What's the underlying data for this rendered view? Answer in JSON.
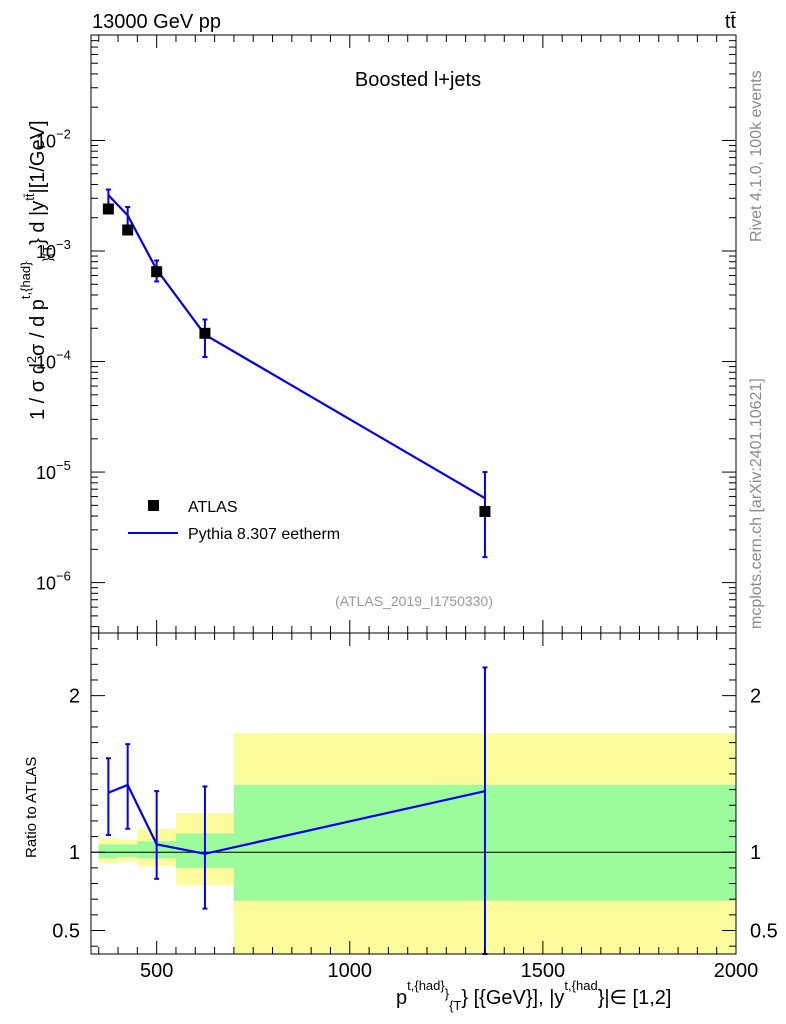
{
  "header": {
    "energy_label": "13000 GeV pp",
    "process_label": "tt̄"
  },
  "side_labels": {
    "rivet": "Rivet 4.1.0,  100k events",
    "mcplots": "mcplots.cern.ch [arXiv:2401.10621]"
  },
  "chart_data": [
    {
      "type": "scatter",
      "panel": "main",
      "title": "Boosted l+jets",
      "analysis_id": "(ATLAS_2019_I1750330)",
      "ylabel": "1 / σ d²σ / d p^{t,{had}}_{T} d |y^{tt̄}|[1/GeV]",
      "yscale": "log",
      "xlim": [
        330,
        2000
      ],
      "ylim": [
        3.5e-07,
        0.09
      ],
      "ytick_labels": [
        {
          "value": 1e-06,
          "mantissa": "10",
          "exp": "−6"
        },
        {
          "value": 1e-05,
          "mantissa": "10",
          "exp": "−5"
        },
        {
          "value": 0.0001,
          "mantissa": "10",
          "exp": "−4"
        },
        {
          "value": 0.001,
          "mantissa": "10",
          "exp": "−3"
        },
        {
          "value": 0.01,
          "mantissa": "10",
          "exp": "−2"
        }
      ],
      "legend": {
        "location": "lower-left",
        "entries": [
          {
            "label": "ATLAS",
            "marker": "square"
          },
          {
            "label": "Pythia 8.307 eetherm",
            "marker": "line"
          }
        ]
      },
      "series": [
        {
          "name": "ATLAS",
          "color": "#000000",
          "x": [
            375,
            425,
            500,
            625,
            1350
          ],
          "y": [
            0.0024,
            0.00155,
            0.00065,
            0.00018,
            4.4e-06
          ]
        },
        {
          "name": "Pythia 8.307 eetherm",
          "color": "#0000ee",
          "x": [
            375,
            425,
            500,
            625,
            1350
          ],
          "y": [
            0.0032,
            0.0021,
            0.00068,
            0.000175,
            5.8e-06
          ],
          "yerr_low": [
            0.0026,
            0.0017,
            0.00053,
            0.00011,
            1.7e-06
          ],
          "yerr_high": [
            0.0036,
            0.0025,
            0.00082,
            0.00024,
            1e-05
          ]
        }
      ]
    },
    {
      "type": "line",
      "panel": "ratio",
      "ylabel": "Ratio to ATLAS",
      "xlabel": "p^{t,{had}}_{T} [{GeV}], |y^{t,{had}}|∈ [1,2]",
      "xlim": [
        330,
        2000
      ],
      "ylim": [
        0.35,
        2.4
      ],
      "xtick_labels": [
        {
          "value": 500,
          "label": "500"
        },
        {
          "value": 1000,
          "label": "1000"
        },
        {
          "value": 1500,
          "label": "1500"
        },
        {
          "value": 2000,
          "label": "2000"
        }
      ],
      "ytick_labels": [
        {
          "value": 0.5,
          "label": "0.5"
        },
        {
          "value": 1,
          "label": "1"
        },
        {
          "value": 2,
          "label": "2"
        }
      ],
      "reference_line": 1.0,
      "uncertainty_bands": [
        {
          "x_low": 350,
          "x_high": 400,
          "inner_low": 0.96,
          "inner_high": 1.05,
          "outer_low": 0.93,
          "outer_high": 1.09
        },
        {
          "x_low": 400,
          "x_high": 450,
          "inner_low": 0.97,
          "inner_high": 1.05,
          "outer_low": 0.94,
          "outer_high": 1.08
        },
        {
          "x_low": 450,
          "x_high": 550,
          "inner_low": 0.96,
          "inner_high": 1.07,
          "outer_low": 0.91,
          "outer_high": 1.15
        },
        {
          "x_low": 550,
          "x_high": 700,
          "inner_low": 0.9,
          "inner_high": 1.12,
          "outer_low": 0.79,
          "outer_high": 1.25
        },
        {
          "x_low": 700,
          "x_high": 2000,
          "inner_low": 0.69,
          "inner_high": 1.43,
          "outer_low": 0.35,
          "outer_high": 1.76
        }
      ],
      "band_colors": {
        "inner": "#9cfc9c",
        "outer": "#fcfc9c"
      },
      "series": [
        {
          "name": "Pythia 8.307 eetherm / ATLAS",
          "color": "#0000ee",
          "x": [
            375,
            425,
            500,
            625,
            1350
          ],
          "y": [
            1.38,
            1.43,
            1.05,
            0.99,
            1.39
          ],
          "yerr_low": [
            1.11,
            1.15,
            0.83,
            0.64,
            0.35
          ],
          "yerr_high": [
            1.6,
            1.69,
            1.39,
            1.42,
            2.18
          ]
        }
      ]
    }
  ]
}
